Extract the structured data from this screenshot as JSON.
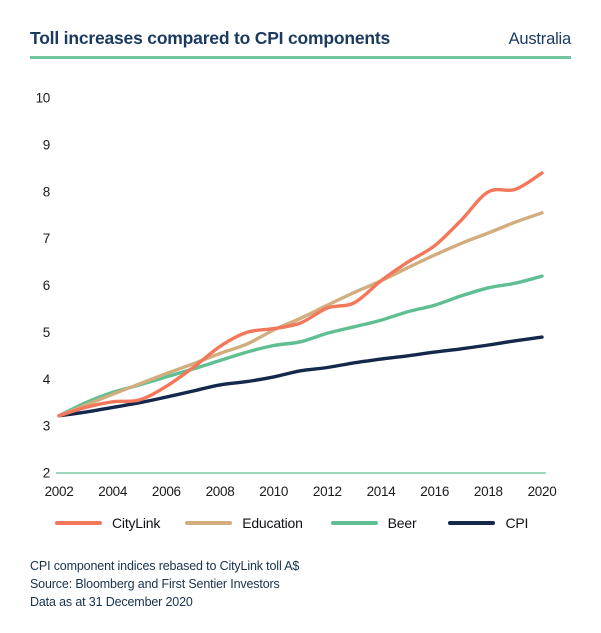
{
  "header": {
    "title": "Toll increases compared to CPI components",
    "region": "Australia"
  },
  "chart_data": {
    "type": "line",
    "title": "Toll increases compared to CPI components",
    "subtitle": "Australia",
    "x": [
      2002,
      2003,
      2004,
      2005,
      2006,
      2007,
      2008,
      2009,
      2010,
      2011,
      2012,
      2013,
      2014,
      2015,
      2016,
      2017,
      2018,
      2019,
      2020
    ],
    "x_ticks": [
      2002,
      2004,
      2006,
      2008,
      2010,
      2012,
      2014,
      2016,
      2018,
      2020
    ],
    "y_ticks": [
      2,
      3,
      4,
      5,
      6,
      7,
      8,
      9,
      10
    ],
    "xlim": [
      2002,
      2020
    ],
    "ylim": [
      2,
      10
    ],
    "grid": false,
    "legend_position": "bottom",
    "axis_line_color": "#7CCBA6",
    "series": [
      {
        "name": "CPI",
        "color": "#13284A",
        "values": [
          3.22,
          3.3,
          3.4,
          3.5,
          3.62,
          3.75,
          3.88,
          3.95,
          4.05,
          4.18,
          4.25,
          4.35,
          4.43,
          4.5,
          4.58,
          4.65,
          4.73,
          4.82,
          4.9
        ]
      },
      {
        "name": "Beer",
        "color": "#5FBF92",
        "values": [
          3.22,
          3.5,
          3.72,
          3.88,
          4.05,
          4.22,
          4.4,
          4.58,
          4.72,
          4.8,
          4.98,
          5.12,
          5.26,
          5.44,
          5.58,
          5.78,
          5.95,
          6.05,
          6.2
        ]
      },
      {
        "name": "Education",
        "color": "#D2AD7D",
        "values": [
          3.22,
          3.45,
          3.68,
          3.9,
          4.12,
          4.33,
          4.55,
          4.75,
          5.05,
          5.3,
          5.58,
          5.85,
          6.1,
          6.38,
          6.65,
          6.9,
          7.12,
          7.35,
          7.55
        ]
      },
      {
        "name": "CityLink",
        "color": "#F3775B",
        "values": [
          3.22,
          3.4,
          3.52,
          3.56,
          3.85,
          4.25,
          4.7,
          5.0,
          5.08,
          5.2,
          5.52,
          5.63,
          6.1,
          6.5,
          6.85,
          7.4,
          8.0,
          8.05,
          8.4
        ]
      }
    ],
    "legend_order": [
      "CityLink",
      "Education",
      "Beer",
      "CPI"
    ]
  },
  "footnotes": [
    "CPI component indices rebased to CityLink toll A$",
    "Source: Bloomberg and First Sentier Investors",
    "Data as at 31 December 2020"
  ]
}
